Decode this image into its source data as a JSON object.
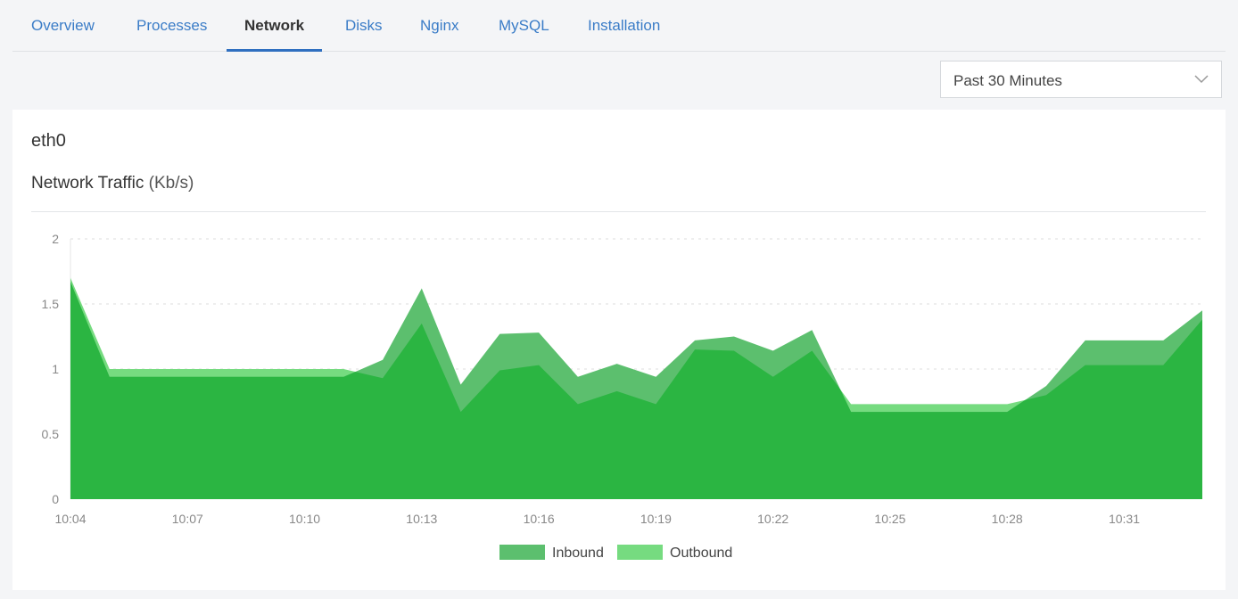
{
  "tabs": [
    {
      "label": "Overview",
      "active": false
    },
    {
      "label": "Processes",
      "active": false
    },
    {
      "label": "Network",
      "active": true
    },
    {
      "label": "Disks",
      "active": false
    },
    {
      "label": "Nginx",
      "active": false
    },
    {
      "label": "MySQL",
      "active": false
    },
    {
      "label": "Installation",
      "active": false
    }
  ],
  "time_range": {
    "selected": "Past 30 Minutes",
    "icon": "chevron-down-icon"
  },
  "card": {
    "interface": "eth0",
    "title": "Network Traffic",
    "unit": "(Kb/s)"
  },
  "colors": {
    "inbound": "#5cbf6e",
    "outbound": "#76db80",
    "overlap": "#2bb542",
    "tab_active": "#2f6fc0",
    "tab_link": "#3a7cc7"
  },
  "chart_data": {
    "type": "area",
    "title": "Network Traffic (Kb/s)",
    "ylim": [
      0,
      2
    ],
    "yticks": [
      "0",
      "0.5",
      "1",
      "1.5",
      "2"
    ],
    "xticks": [
      "10:04",
      "10:07",
      "10:10",
      "10:13",
      "10:16",
      "10:19",
      "10:22",
      "10:25",
      "10:28",
      "10:31"
    ],
    "x": [
      "10:04",
      "10:05",
      "10:06",
      "10:07",
      "10:08",
      "10:09",
      "10:10",
      "10:11",
      "10:12",
      "10:13",
      "10:14",
      "10:15",
      "10:16",
      "10:17",
      "10:18",
      "10:19",
      "10:20",
      "10:21",
      "10:22",
      "10:23",
      "10:24",
      "10:25",
      "10:26",
      "10:27",
      "10:28",
      "10:29",
      "10:30",
      "10:31",
      "10:32",
      "10:33"
    ],
    "grid": true,
    "legend": "bottom",
    "series": [
      {
        "name": "Inbound",
        "values": [
          1.67,
          0.94,
          0.94,
          0.94,
          0.94,
          0.94,
          0.94,
          0.94,
          1.07,
          1.62,
          0.88,
          1.27,
          1.28,
          0.94,
          1.04,
          0.94,
          1.22,
          1.25,
          1.14,
          1.3,
          0.67,
          0.67,
          0.67,
          0.67,
          0.67,
          0.87,
          1.22,
          1.22,
          1.22,
          1.45
        ]
      },
      {
        "name": "Outbound",
        "values": [
          1.7,
          1.0,
          1.0,
          1.0,
          1.0,
          1.0,
          1.0,
          1.0,
          0.93,
          1.35,
          0.67,
          0.99,
          1.03,
          0.73,
          0.83,
          0.73,
          1.15,
          1.14,
          0.94,
          1.14,
          0.73,
          0.73,
          0.73,
          0.73,
          0.73,
          0.8,
          1.03,
          1.03,
          1.03,
          1.38
        ]
      }
    ]
  }
}
